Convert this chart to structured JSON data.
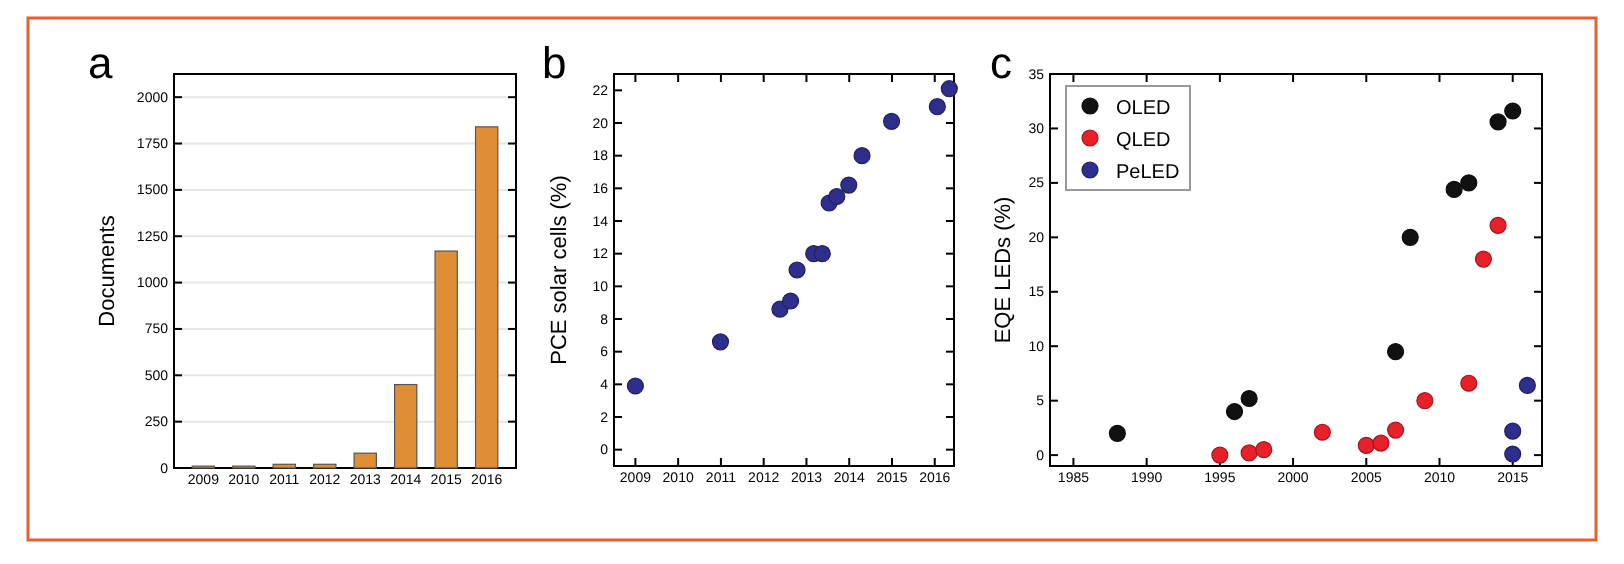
{
  "chart_data": [
    {
      "type": "bar",
      "title": "a",
      "ylabel": "Documents",
      "categories": [
        "2009",
        "2010",
        "2011",
        "2012",
        "2013",
        "2014",
        "2015",
        "2016"
      ],
      "values": [
        10,
        10,
        20,
        20,
        80,
        450,
        1170,
        1840
      ],
      "color": "#e08e35",
      "ylim": [
        0,
        2125
      ],
      "yticks": [
        0,
        250,
        500,
        750,
        1000,
        1250,
        1500,
        1750,
        2000
      ],
      "grid": "y"
    },
    {
      "type": "scatter",
      "title": "b",
      "ylabel": "PCE solar cells (%)",
      "x": [
        2009,
        2010.99,
        2012.38,
        2012.63,
        2012.78,
        2013.17,
        2013.37,
        2013.53,
        2013.71,
        2013.99,
        2014.3,
        2014.99,
        2016.06,
        2016.34
      ],
      "values": [
        3.9,
        6.6,
        8.6,
        9.1,
        11.0,
        12.0,
        12.0,
        15.1,
        15.5,
        16.2,
        18.0,
        20.1,
        21.0,
        22.1
      ],
      "color": "#2e2e8c",
      "xlim": [
        2008.5,
        2016.45
      ],
      "xticks": [
        2009,
        2010,
        2011,
        2012,
        2013,
        2014,
        2015,
        2016
      ],
      "ylim": [
        -1,
        23
      ],
      "yticks": [
        0,
        2,
        4,
        6,
        8,
        10,
        12,
        14,
        16,
        18,
        20,
        22
      ],
      "marker": "circle"
    },
    {
      "type": "scatter",
      "title": "c",
      "ylabel": "EQE LEDs (%)",
      "xlim": [
        1983.4,
        2017
      ],
      "xticks": [
        1985,
        1990,
        1995,
        2000,
        2005,
        2010,
        2015
      ],
      "ylim": [
        -1,
        35
      ],
      "yticks": [
        0,
        5,
        10,
        15,
        20,
        25,
        30,
        35
      ],
      "marker": "circle",
      "legend": "top left",
      "series": [
        {
          "name": "OLED",
          "color": "#111111",
          "x": [
            1988,
            1996,
            1997,
            2007,
            2008,
            2011,
            2012,
            2014,
            2015
          ],
          "values": [
            2.0,
            4.0,
            5.2,
            9.5,
            20.0,
            24.4,
            25.0,
            30.6,
            31.6
          ]
        },
        {
          "name": "QLED",
          "color": "#e8202a",
          "x": [
            1995,
            1997,
            1998,
            2002,
            2005,
            2006,
            2007,
            2009,
            2012,
            2013,
            2014
          ],
          "values": [
            0,
            0.2,
            0.5,
            2.1,
            0.9,
            1.1,
            2.3,
            5.0,
            6.6,
            18.0,
            21.1
          ]
        },
        {
          "name": "PeLED",
          "color": "#2e2e8c",
          "x": [
            2015,
            2015,
            2016
          ],
          "values": [
            2.2,
            0.1,
            6.4
          ]
        }
      ]
    }
  ]
}
